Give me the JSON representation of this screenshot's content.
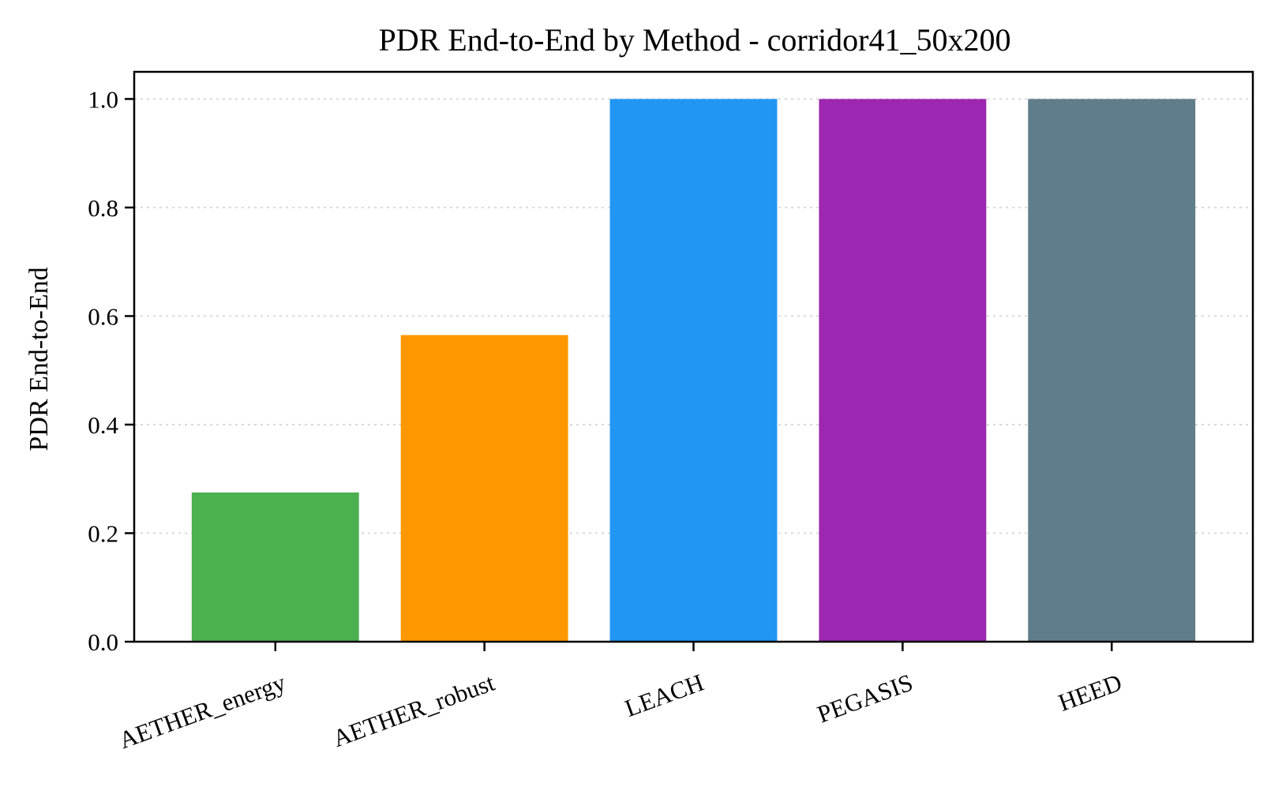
{
  "chart_data": {
    "type": "bar",
    "title": "PDR End-to-End by Method - corridor41_50x200",
    "xlabel": "",
    "ylabel": "PDR End-to-End",
    "categories": [
      "AETHER_energy",
      "AETHER_robust",
      "LEACH",
      "PEGASIS",
      "HEED"
    ],
    "values": [
      0.275,
      0.565,
      1.0,
      1.0,
      1.0
    ],
    "colors": [
      "#4caf50",
      "#ff9800",
      "#2196f3",
      "#9c27b0",
      "#607d8b"
    ],
    "ylim": [
      0,
      1.05
    ],
    "yticks": [
      "0.0",
      "0.2",
      "0.4",
      "0.6",
      "0.8",
      "1.0"
    ],
    "grid": "horizontal-dotted",
    "legend": "none"
  }
}
